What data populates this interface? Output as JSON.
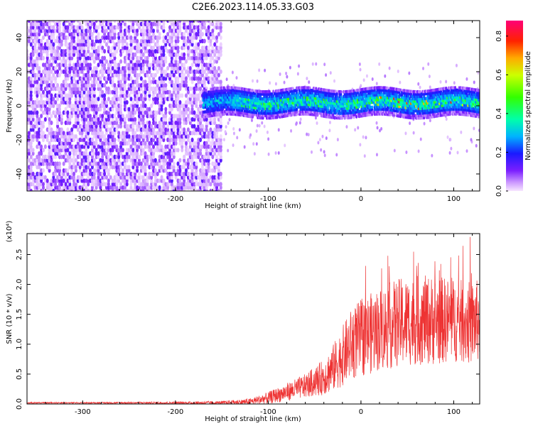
{
  "title": "C2E6.2023.114.05.33.G03",
  "chart_data": [
    {
      "type": "heatmap",
      "xlabel": "Height of straight line (km)",
      "ylabel": "Frequency (Hz)",
      "xlim": [
        -360,
        128
      ],
      "ylim": [
        -50,
        50
      ],
      "xticks": [
        -300,
        -200,
        -100,
        0,
        100
      ],
      "yticks": [
        -40,
        -20,
        0,
        20,
        40
      ],
      "colorbar": {
        "label": "Normalized spectral amplitude",
        "range": [
          0.0,
          0.88
        ],
        "ticks": [
          "0.0",
          "0.2",
          "0.4",
          "0.6",
          "0.8"
        ],
        "tick_values": [
          0.0,
          0.2,
          0.4,
          0.6,
          0.8
        ],
        "colormap": "rainbow"
      },
      "regions": [
        {
          "x_range": [
            -360,
            -150
          ],
          "frequency_range": [
            -50,
            50
          ],
          "amplitude": "0.1-0.2",
          "description": "broadband noise"
        },
        {
          "x_range": [
            -170,
            128
          ],
          "frequency_center": 2,
          "frequency_width": 14,
          "amplitude": "0.3-0.88",
          "description": "narrow band signal near 0 Hz"
        }
      ]
    },
    {
      "type": "line",
      "xlabel": "Height of straight line (km)",
      "ylabel": "SNR (10 * v/v)",
      "ylabel_multiplier": "(x10⁴)",
      "xlim": [
        -360,
        128
      ],
      "ylim": [
        0,
        2.85
      ],
      "xticks": [
        -300,
        -200,
        -100,
        0,
        100
      ],
      "yticks": [
        "0.0",
        "0.5",
        "1.0",
        "1.5",
        "2.0",
        "2.5"
      ],
      "ytick_values": [
        0,
        0.5,
        1.0,
        1.5,
        2.0,
        2.5
      ],
      "series": [
        {
          "color": "#ee3333",
          "x": [
            -360,
            -300,
            -200,
            -150,
            -120,
            -100,
            -80,
            -60,
            -40,
            -30,
            -20,
            -10,
            0,
            20,
            40,
            60,
            80,
            100,
            120,
            128
          ],
          "y": [
            0.02,
            0.02,
            0.02,
            0.02,
            0.04,
            0.1,
            0.2,
            0.3,
            0.45,
            0.6,
            0.8,
            1.0,
            1.1,
            1.25,
            1.35,
            1.4,
            1.4,
            1.4,
            1.35,
            1.4
          ],
          "spread": [
            0.01,
            0.01,
            0.02,
            0.03,
            0.05,
            0.1,
            0.15,
            0.2,
            0.3,
            0.4,
            0.5,
            0.6,
            0.65,
            0.7,
            0.75,
            0.75,
            0.75,
            0.7,
            0.7,
            0.7
          ]
        }
      ]
    }
  ]
}
